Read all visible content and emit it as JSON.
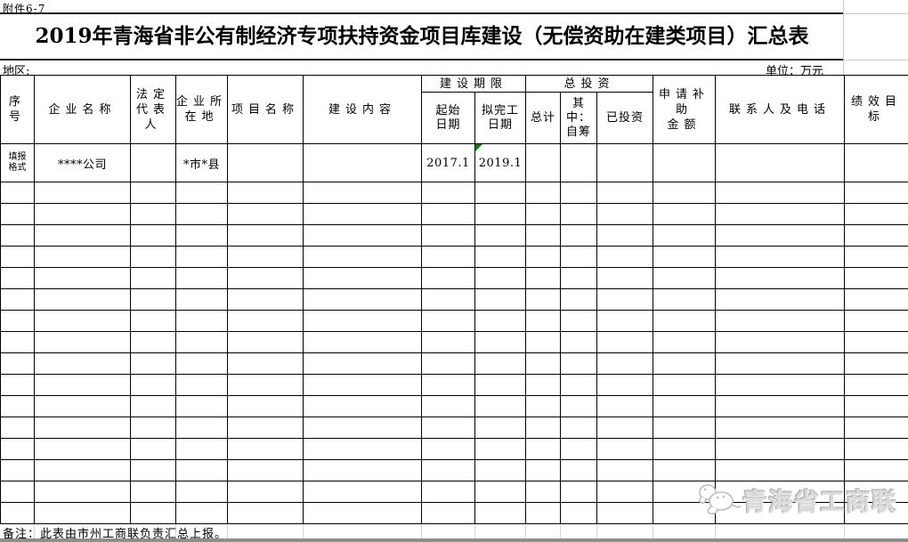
{
  "page": {
    "attachment_label": "附件6-7",
    "title": "2019年青海省非公有制经济专项扶持资金项目库建设（无偿资助在建类项目）汇总表",
    "region_label": "地区:",
    "unit_label": "单位：万元",
    "note": "备注：此表由市州工商联负责汇总上报。",
    "watermark_text": "青海省工商联"
  },
  "table": {
    "header": {
      "seq": "序号",
      "enterprise_name": "企业名称",
      "legal_rep": "法定\n代表\n人",
      "location": "企业所\n在地",
      "project_name": "项目名称",
      "construction_content": "建设内容",
      "construction_period_group": "建设期限",
      "start_date": "起始\n日期",
      "planned_completion": "拟完工\n日期",
      "total_investment_group": "总投资",
      "total": "总计",
      "self_raised": "其\n中：\n自筹",
      "invested": "已投资",
      "subsidy_amount": "申请补助\n金额",
      "contact": "联系人及电话",
      "performance_target": "绩效目标"
    },
    "filled_row": {
      "cells": [
        "填报\n格式",
        "****公司",
        "",
        "*市*县",
        "",
        "",
        "2017.1",
        "2019.1",
        "",
        "",
        "",
        "",
        "",
        ""
      ],
      "marker_cell_index": 7
    },
    "empty_row_count": 16
  },
  "colors": {
    "marker_green": "#0b7c0b",
    "watermark_gray": "#c9c9c9",
    "bottom_bar_gray": "#8e8e8e",
    "gridline_faint": "#d6d6d6"
  }
}
